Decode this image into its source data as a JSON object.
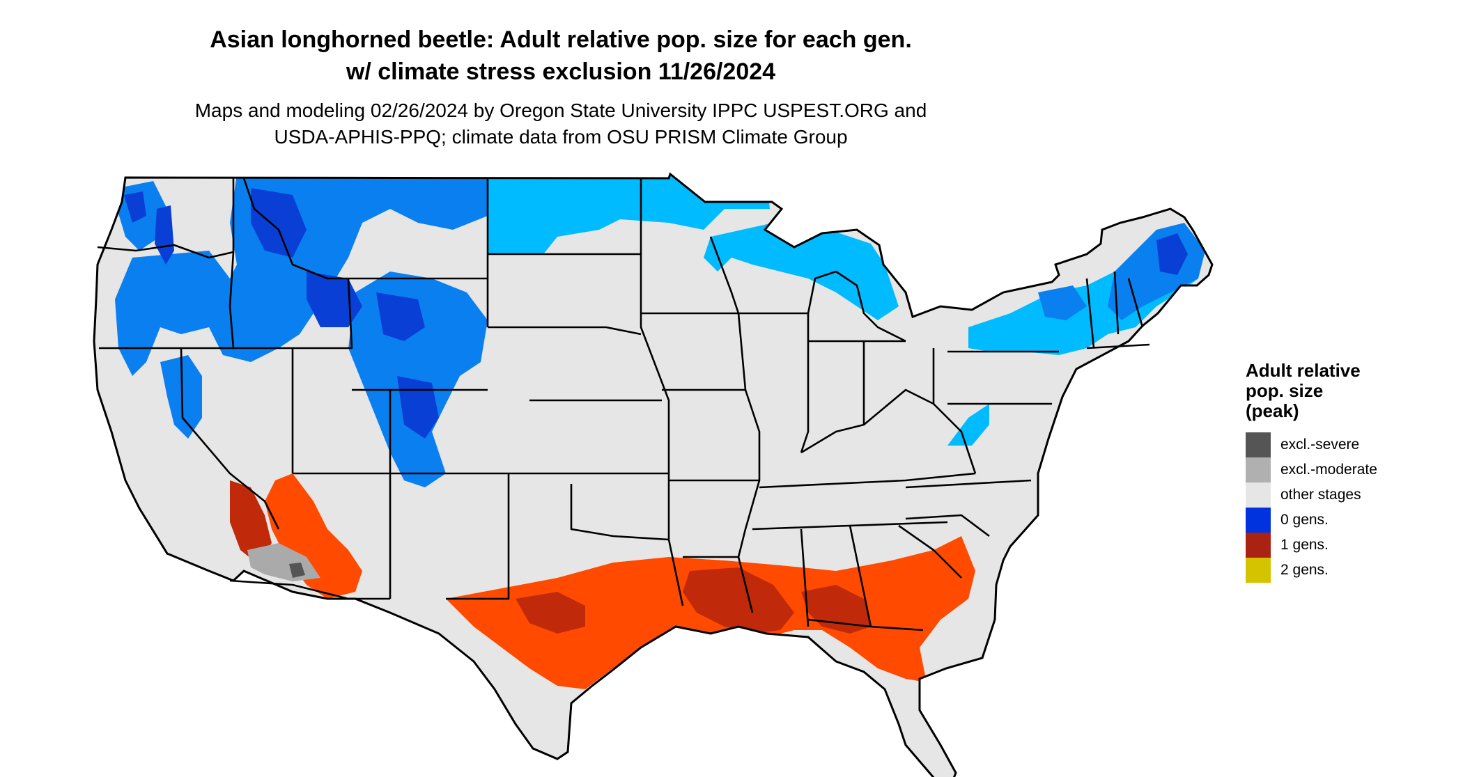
{
  "title": {
    "line1": "Asian longhorned beetle: Adult relative pop. size for each gen.",
    "line2": "w/ climate stress exclusion 11/26/2024"
  },
  "subtitle": {
    "line1": "Maps and modeling 02/26/2024 by Oregon State University IPPC USPEST.ORG and",
    "line2": "USDA-APHIS-PPQ; climate data from OSU PRISM Climate Group"
  },
  "legend": {
    "title_lines": [
      "Adult relative",
      "pop. size",
      "(peak)"
    ],
    "items": [
      {
        "label": "excl.-severe",
        "color": "#555555"
      },
      {
        "label": "excl.-moderate",
        "color": "#b0b0b0"
      },
      {
        "label": "other stages",
        "color": "#e6e6e6"
      },
      {
        "label": "0 gens.",
        "color": "#0033dd"
      },
      {
        "label": "1 gens.",
        "color": "#aa2211"
      },
      {
        "label": "2 gens.",
        "color": "#d4c400"
      }
    ]
  },
  "map_colors": {
    "land": "#e6e6e6",
    "cold_light": "#00bbff",
    "cold_mid": "#0a7ff0",
    "cold_dark": "#0a3fd6",
    "warm_light": "#ff4a00",
    "warm_dark": "#c02a0a",
    "excl_moderate": "#aaaaaa",
    "excl_severe": "#555555",
    "border": "#000000"
  }
}
